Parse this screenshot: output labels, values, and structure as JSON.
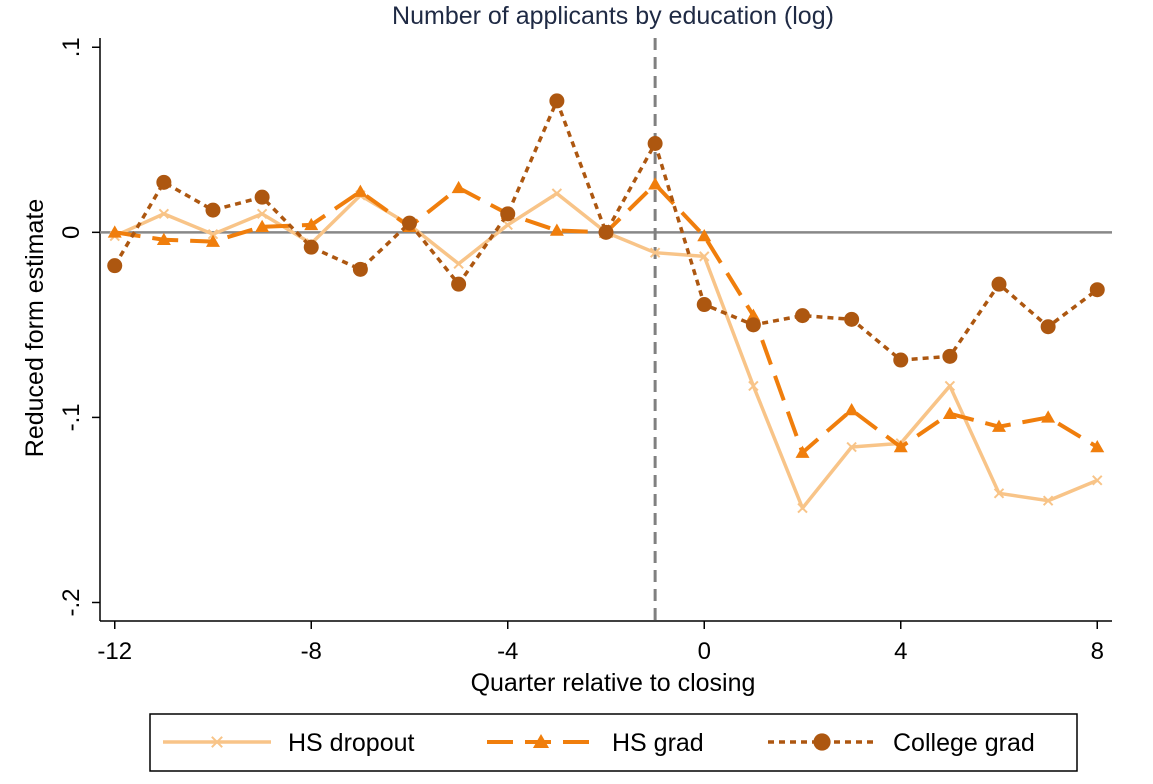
{
  "chart_data": {
    "type": "line",
    "title": "Number of applicants by education (log)",
    "xlabel": "Quarter relative to closing",
    "ylabel": "Reduced form estimate",
    "xlim": [
      -12.3,
      8.3
    ],
    "ylim": [
      -0.21,
      0.105
    ],
    "xticks": [
      -12,
      -8,
      -4,
      0,
      4,
      8
    ],
    "xtick_labels": [
      "-12",
      "-8",
      "-4",
      "0",
      "4",
      "8"
    ],
    "yticks": [
      0.1,
      0,
      -0.1,
      -0.2
    ],
    "ytick_labels": [
      ".1",
      "0",
      "-.1",
      "-.2"
    ],
    "reference_vertical_x": -1,
    "reference_horizontal_y": 0,
    "grid": false,
    "legend_position": "bottom",
    "x": [
      -12,
      -11,
      -10,
      -9,
      -8,
      -7,
      -6,
      -5,
      -4,
      -3,
      -2,
      -1,
      0,
      1,
      2,
      3,
      4,
      5,
      6,
      7,
      8
    ],
    "series": [
      {
        "name": "HS dropout",
        "color": "#f8c488",
        "line": "solid",
        "marker": "x",
        "values": [
          -0.002,
          0.01,
          -0.001,
          0.01,
          -0.006,
          0.02,
          0.004,
          -0.017,
          0.004,
          0.021,
          0.0,
          -0.011,
          -0.013,
          -0.083,
          -0.149,
          -0.116,
          -0.114,
          -0.083,
          -0.141,
          -0.145,
          -0.134
        ]
      },
      {
        "name": "HS grad",
        "color": "#f07e0c",
        "line": "dashed",
        "marker": "triangle",
        "values": [
          0.0,
          -0.004,
          -0.005,
          0.003,
          0.004,
          0.022,
          0.003,
          0.024,
          0.01,
          0.001,
          0.0,
          0.026,
          -0.002,
          -0.045,
          -0.119,
          -0.096,
          -0.116,
          -0.098,
          -0.105,
          -0.1,
          -0.116
        ]
      },
      {
        "name": "College grad",
        "color": "#ad5710",
        "line": "dotted",
        "marker": "circle",
        "values": [
          -0.018,
          0.027,
          0.012,
          0.019,
          -0.008,
          -0.02,
          0.005,
          -0.028,
          0.01,
          0.071,
          0.0,
          0.048,
          -0.039,
          -0.05,
          -0.045,
          -0.047,
          -0.069,
          -0.067,
          -0.028,
          -0.051,
          -0.031
        ]
      }
    ]
  }
}
